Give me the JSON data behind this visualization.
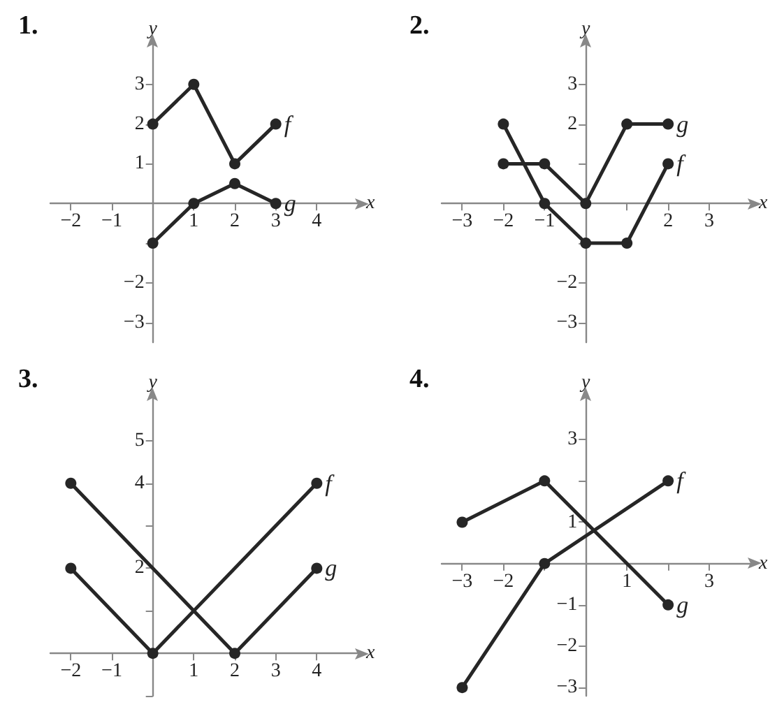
{
  "chart_data": [
    {
      "type": "line",
      "title": "1.",
      "xlabel": "x",
      "ylabel": "y",
      "marker": "circle",
      "grid": false,
      "legend": false,
      "xlim": [
        -2.5,
        5
      ],
      "ylim": [
        -3.5,
        4
      ],
      "xticks": [
        -2,
        -1,
        1,
        2,
        3,
        4
      ],
      "yticks": [
        -3,
        -2,
        {
          "value": -1,
          "label": null
        },
        1,
        2,
        3
      ],
      "series": [
        {
          "name": "f",
          "color": "#262626",
          "x": [
            0,
            1,
            2,
            3
          ],
          "values": [
            2,
            3,
            1,
            2
          ]
        },
        {
          "name": "g",
          "color": "#262626",
          "x": [
            0,
            1,
            2,
            3
          ],
          "values": [
            -1,
            0,
            0.5,
            0
          ]
        }
      ]
    },
    {
      "type": "line",
      "title": "2.",
      "xlabel": "x",
      "ylabel": "y",
      "marker": "circle",
      "grid": false,
      "legend": false,
      "xlim": [
        -3.5,
        4
      ],
      "ylim": [
        -3.5,
        4
      ],
      "xticks": [
        -3,
        -2,
        -1,
        {
          "value": 1,
          "label": null
        },
        2,
        3
      ],
      "yticks": [
        -3,
        -2,
        {
          "value": -1,
          "label": null
        },
        {
          "value": 1,
          "label": null
        },
        2,
        3
      ],
      "series": [
        {
          "name": "g",
          "color": "#262626",
          "x": [
            -2,
            -1,
            0,
            1,
            2
          ],
          "values": [
            1,
            1,
            0,
            2,
            2
          ]
        },
        {
          "name": "f",
          "color": "#262626",
          "x": [
            -2,
            -1,
            0,
            1,
            2
          ],
          "values": [
            2,
            0,
            -1,
            -1,
            1
          ]
        }
      ]
    },
    {
      "type": "line",
      "title": "3.",
      "xlabel": "x",
      "ylabel": "y",
      "marker": "circle",
      "grid": false,
      "legend": false,
      "xlim": [
        -2.5,
        5
      ],
      "ylim": [
        -1,
        6
      ],
      "xticks": [
        -2,
        -1,
        1,
        2,
        3,
        4
      ],
      "yticks": [
        {
          "value": -1,
          "label": null
        },
        {
          "value": 1,
          "label": null
        },
        2,
        {
          "value": 3,
          "label": null
        },
        4,
        5
      ],
      "series": [
        {
          "name": "f",
          "color": "#262626",
          "x": [
            -2,
            0,
            4
          ],
          "values": [
            2,
            0,
            4
          ]
        },
        {
          "name": "g",
          "color": "#262626",
          "x": [
            -2,
            2,
            4
          ],
          "values": [
            4,
            0,
            2
          ]
        }
      ]
    },
    {
      "type": "line",
      "title": "4.",
      "xlabel": "x",
      "ylabel": "y",
      "marker": "circle",
      "grid": false,
      "legend": false,
      "xlim": [
        -3.5,
        4
      ],
      "ylim": [
        -3.2,
        4
      ],
      "xticks": [
        -3,
        -2,
        {
          "value": -1,
          "label": null
        },
        1,
        {
          "value": 2,
          "label": null
        },
        3
      ],
      "yticks": [
        -3,
        -2,
        -1,
        1,
        {
          "value": 2,
          "label": null
        },
        3
      ],
      "series": [
        {
          "name": "g",
          "color": "#262626",
          "x": [
            -3,
            -1,
            2
          ],
          "values": [
            1,
            2,
            -1
          ]
        },
        {
          "name": "f",
          "color": "#262626",
          "x": [
            -3,
            -1,
            2
          ],
          "values": [
            -3,
            0,
            2
          ]
        }
      ]
    }
  ]
}
